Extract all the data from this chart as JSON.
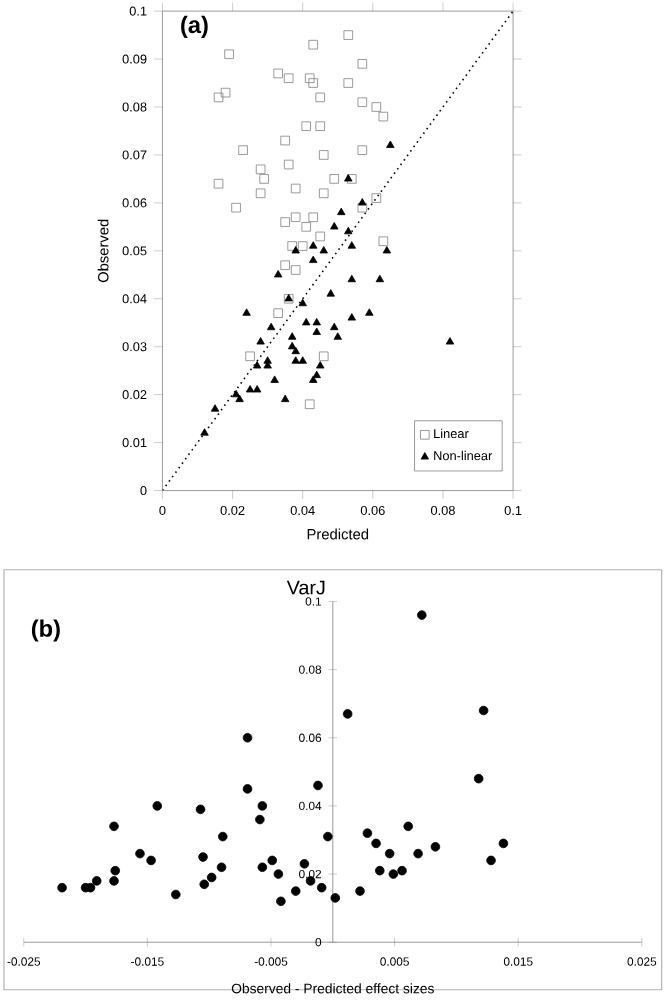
{
  "chart_data": [
    {
      "type": "scatter",
      "title": "(a)",
      "xlabel": "Predicted",
      "ylabel": "Observed",
      "xlim": [
        0,
        0.1
      ],
      "ylim": [
        0,
        0.1
      ],
      "xticks": [
        0,
        0.02,
        0.04,
        0.06,
        0.08,
        0.1
      ],
      "yticks": [
        0,
        0.01,
        0.02,
        0.03,
        0.04,
        0.05,
        0.06,
        0.07,
        0.08,
        0.09,
        0.1
      ],
      "legend": "bottom right",
      "series": [
        {
          "name": "Linear",
          "color": "#808080",
          "marker": "square",
          "x": [
            0.019,
            0.018,
            0.016,
            0.033,
            0.036,
            0.043,
            0.042,
            0.043,
            0.045,
            0.053,
            0.057,
            0.053,
            0.057,
            0.061,
            0.063,
            0.035,
            0.041,
            0.045,
            0.023,
            0.036,
            0.046,
            0.057,
            0.028,
            0.029,
            0.016,
            0.028,
            0.038,
            0.049,
            0.054,
            0.046,
            0.021,
            0.061,
            0.057,
            0.035,
            0.038,
            0.041,
            0.043,
            0.045,
            0.037,
            0.04,
            0.063,
            0.035,
            0.038,
            0.036,
            0.033,
            0.025,
            0.046,
            0.042
          ],
          "values": [
            0.091,
            0.083,
            0.082,
            0.087,
            0.086,
            0.093,
            0.086,
            0.085,
            0.082,
            0.095,
            0.089,
            0.085,
            0.081,
            0.08,
            0.078,
            0.073,
            0.076,
            0.076,
            0.071,
            0.068,
            0.07,
            0.071,
            0.067,
            0.065,
            0.064,
            0.062,
            0.063,
            0.065,
            0.065,
            0.062,
            0.059,
            0.061,
            0.059,
            0.056,
            0.057,
            0.055,
            0.057,
            0.053,
            0.051,
            0.051,
            0.052,
            0.047,
            0.046,
            0.04,
            0.037,
            0.028,
            0.028,
            0.018
          ]
        },
        {
          "name": "Non-linear",
          "color": "#000000",
          "marker": "triangle",
          "x": [
            0.065,
            0.053,
            0.057,
            0.051,
            0.049,
            0.053,
            0.054,
            0.043,
            0.046,
            0.038,
            0.043,
            0.064,
            0.033,
            0.054,
            0.062,
            0.048,
            0.024,
            0.036,
            0.04,
            0.031,
            0.041,
            0.044,
            0.044,
            0.049,
            0.05,
            0.054,
            0.059,
            0.037,
            0.037,
            0.028,
            0.038,
            0.038,
            0.04,
            0.03,
            0.027,
            0.03,
            0.045,
            0.044,
            0.043,
            0.032,
            0.025,
            0.027,
            0.021,
            0.022,
            0.035,
            0.015,
            0.012,
            0.082
          ],
          "values": [
            0.072,
            0.065,
            0.06,
            0.058,
            0.055,
            0.054,
            0.051,
            0.051,
            0.05,
            0.05,
            0.048,
            0.05,
            0.045,
            0.044,
            0.044,
            0.041,
            0.037,
            0.04,
            0.039,
            0.034,
            0.035,
            0.035,
            0.033,
            0.034,
            0.032,
            0.036,
            0.037,
            0.032,
            0.03,
            0.031,
            0.029,
            0.027,
            0.027,
            0.027,
            0.026,
            0.026,
            0.026,
            0.024,
            0.023,
            0.023,
            0.021,
            0.021,
            0.02,
            0.019,
            0.019,
            0.017,
            0.012,
            0.031
          ]
        },
        {
          "type": "line",
          "color": "#000000",
          "line_style": "dotted",
          "x": [
            0,
            0.1
          ],
          "values": [
            0,
            0.1
          ]
        }
      ]
    },
    {
      "type": "scatter",
      "title": "(b)",
      "xlabel": "Observed - Predicted effect sizes",
      "ylabel": "VarJ",
      "xlim": [
        -0.025,
        0.025
      ],
      "ylim": [
        0,
        0.1
      ],
      "xticks": [
        -0.025,
        -0.015,
        -0.005,
        0.005,
        0.015,
        0.025
      ],
      "yticks": [
        0,
        0.02,
        0.04,
        0.06,
        0.08,
        0.1
      ],
      "series": [
        {
          "color": "#000000",
          "marker": "circle",
          "x": [
            -0.0219,
            -0.02,
            -0.0196,
            -0.0191,
            -0.0177,
            -0.0176,
            -0.0177,
            -0.0156,
            -0.0147,
            -0.0142,
            -0.0127,
            -0.0107,
            -0.0105,
            -0.0104,
            -0.0098,
            -0.009,
            -0.0089,
            -0.0069,
            -0.0069,
            -0.0059,
            -0.0057,
            -0.0057,
            -0.0049,
            -0.0044,
            -0.0042,
            -0.003,
            -0.0023,
            -0.0018,
            -0.0012,
            -0.0009,
            -0.0004,
            0.0002,
            0.0012,
            0.0022,
            0.0028,
            0.0035,
            0.0038,
            0.0046,
            0.0049,
            0.0056,
            0.0061,
            0.0069,
            0.0072,
            0.0083,
            0.0118,
            0.0122,
            0.0128,
            0.0138
          ],
          "values": [
            0.016,
            0.016,
            0.016,
            0.018,
            0.034,
            0.021,
            0.018,
            0.026,
            0.024,
            0.04,
            0.014,
            0.039,
            0.025,
            0.017,
            0.019,
            0.022,
            0.031,
            0.06,
            0.045,
            0.036,
            0.04,
            0.022,
            0.024,
            0.02,
            0.012,
            0.015,
            0.023,
            0.018,
            0.046,
            0.016,
            0.031,
            0.013,
            0.067,
            0.015,
            0.032,
            0.029,
            0.021,
            0.026,
            0.02,
            0.021,
            0.034,
            0.026,
            0.096,
            0.028,
            0.048,
            0.068,
            0.024,
            0.029
          ]
        }
      ]
    }
  ]
}
